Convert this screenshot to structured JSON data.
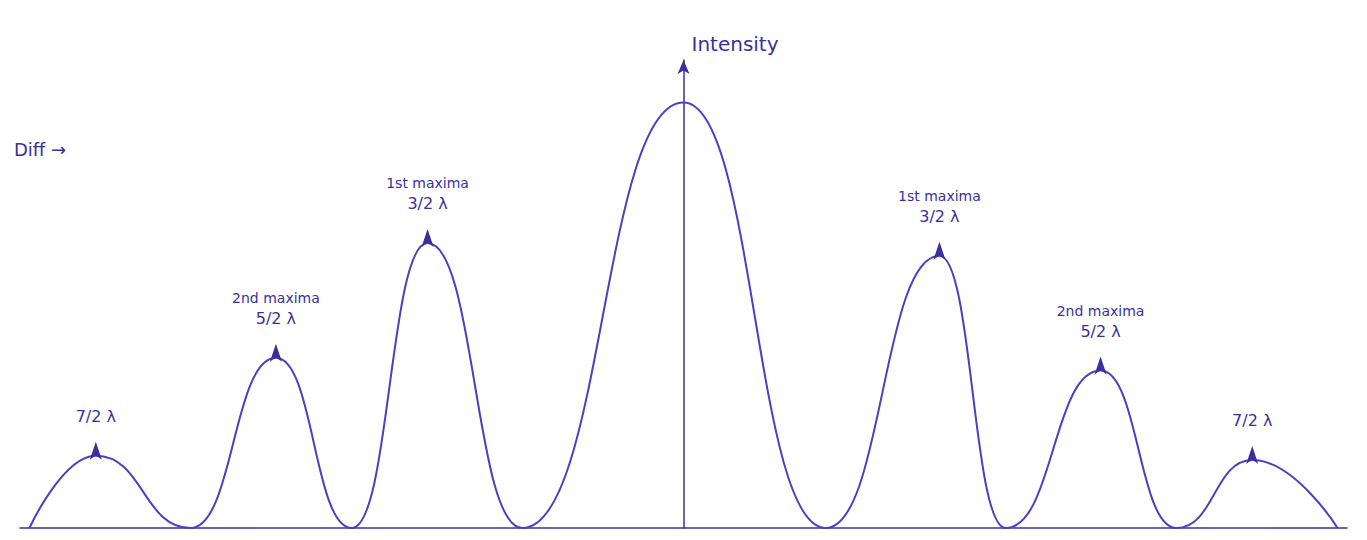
{
  "chart_data": {
    "type": "line",
    "ylabel": "Intensity",
    "x": [
      -6.9,
      -6.2,
      -5.2,
      -4.3,
      -3.5,
      -2.7,
      -1.7,
      0,
      1.5,
      2.7,
      3.4,
      4.4,
      5.2,
      6.0,
      6.9
    ],
    "values": [
      0,
      1.7,
      0,
      4.0,
      0,
      6.7,
      0,
      10,
      0,
      6.4,
      0,
      3.7,
      0,
      1.6,
      0
    ],
    "xlim": [
      -7,
      7
    ],
    "ylim": [
      0,
      11
    ],
    "xticks": [],
    "yticks": [],
    "tick_labels": false,
    "grid": false,
    "color": "#4b3fc4",
    "line_style": "smooth",
    "annotations": [
      {
        "x": -6.2,
        "text": "7/2 λ"
      },
      {
        "x": -4.3,
        "text": "5/2 λ",
        "note": "2nd maxima"
      },
      {
        "x": -2.7,
        "text": "3/2 λ",
        "note": "1st maxima"
      },
      {
        "x": 2.7,
        "text": "3/2 λ",
        "note": "1st maxima"
      },
      {
        "x": 4.4,
        "text": "5/2 λ",
        "note": "2nd maxima"
      },
      {
        "x": 6.0,
        "text": "7/2 λ"
      },
      {
        "text": "Diff →"
      }
    ]
  }
}
